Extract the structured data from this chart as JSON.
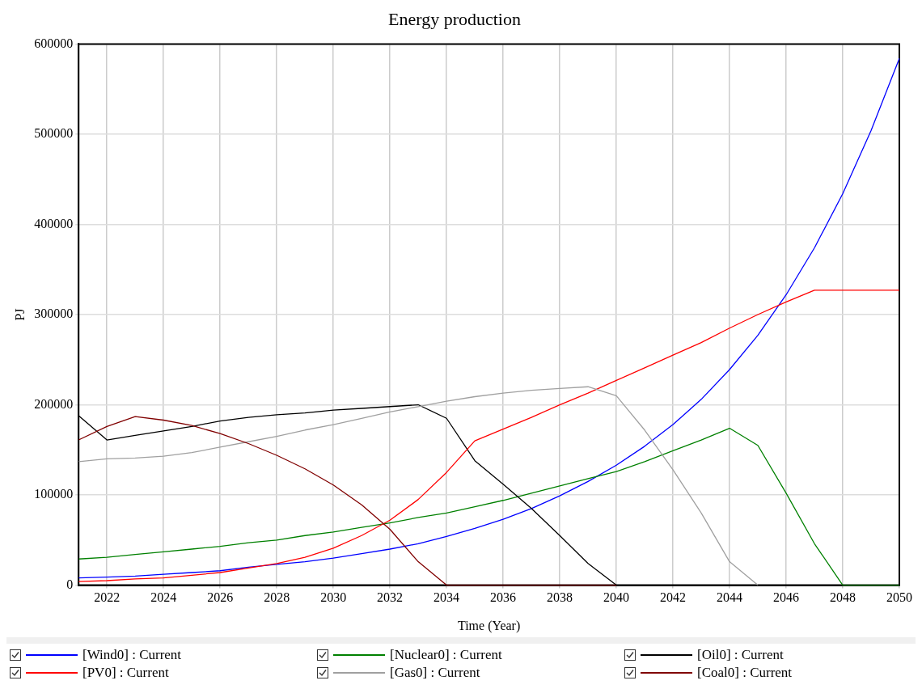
{
  "chart_data": {
    "type": "line",
    "title": "Energy production",
    "xlabel": "Time (Year)",
    "ylabel": "PJ",
    "x": [
      2021,
      2022,
      2023,
      2024,
      2025,
      2026,
      2027,
      2028,
      2029,
      2030,
      2031,
      2032,
      2033,
      2034,
      2035,
      2036,
      2037,
      2038,
      2039,
      2040,
      2041,
      2042,
      2043,
      2044,
      2045,
      2046,
      2047,
      2048,
      2049,
      2050
    ],
    "xlim": [
      2021,
      2050
    ],
    "xticks": [
      2022,
      2024,
      2026,
      2028,
      2030,
      2032,
      2034,
      2036,
      2038,
      2040,
      2042,
      2044,
      2046,
      2048,
      2050
    ],
    "ylim": [
      0,
      600000
    ],
    "yticks": [
      0,
      100000,
      200000,
      300000,
      400000,
      500000,
      600000
    ],
    "grid": true,
    "legend": "bottom",
    "marker": "none",
    "line_style": "solid",
    "series": [
      {
        "name": "[Wind0] : Current",
        "color": "#0000ff",
        "values": [
          8000,
          9000,
          10000,
          12000,
          14000,
          16000,
          20000,
          23000,
          26000,
          30000,
          35000,
          40000,
          46000,
          54000,
          63000,
          73000,
          85000,
          99000,
          115000,
          133000,
          154000,
          178000,
          206000,
          239000,
          277000,
          322000,
          374000,
          434000,
          504000,
          584000
        ]
      },
      {
        "name": "[Nuclear0] : Current",
        "color": "#008000",
        "values": [
          29000,
          31000,
          34000,
          37000,
          40000,
          43000,
          47000,
          50000,
          55000,
          59000,
          64000,
          69000,
          75000,
          80000,
          87000,
          94000,
          102000,
          110000,
          118000,
          126000,
          137000,
          149000,
          161000,
          174000,
          155000,
          102000,
          46000,
          0,
          0,
          0
        ]
      },
      {
        "name": "[Oil0] : Current",
        "color": "#000000",
        "values": [
          188000,
          161000,
          166000,
          171000,
          176000,
          182000,
          186000,
          189000,
          191000,
          194000,
          196000,
          198000,
          200000,
          185000,
          138000,
          112000,
          85000,
          55000,
          24000,
          0,
          null,
          null,
          null,
          null,
          null,
          null,
          null,
          null,
          null,
          null
        ]
      },
      {
        "name": "[PV0] : Current",
        "color": "#ff0000",
        "values": [
          4000,
          5000,
          7000,
          8000,
          11000,
          14000,
          19000,
          24000,
          31000,
          41000,
          55000,
          72000,
          95000,
          125000,
          160000,
          173000,
          186000,
          200000,
          213000,
          227000,
          241000,
          255000,
          269000,
          285000,
          300000,
          314000,
          327000,
          327000,
          327000,
          327000
        ]
      },
      {
        "name": "[Gas0] : Current",
        "color": "#a0a0a0",
        "values": [
          137000,
          140000,
          141000,
          143000,
          147000,
          153000,
          159000,
          165000,
          172000,
          178000,
          185000,
          192000,
          198000,
          204000,
          209000,
          213000,
          216000,
          218000,
          220000,
          210000,
          172000,
          128000,
          80000,
          26000,
          0,
          null,
          null,
          null,
          null,
          null
        ]
      },
      {
        "name": "[Coal0] : Current",
        "color": "#800000",
        "values": [
          161000,
          176000,
          187000,
          183000,
          177000,
          168000,
          157000,
          144000,
          129000,
          111000,
          89000,
          62000,
          26000,
          0,
          0,
          0,
          0,
          0,
          0,
          0,
          null,
          null,
          null,
          null,
          null,
          null,
          null,
          null,
          null,
          null
        ]
      }
    ]
  }
}
